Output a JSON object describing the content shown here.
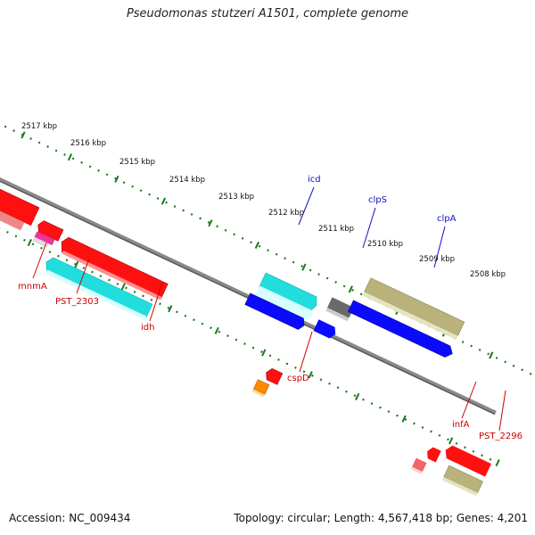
{
  "title": "Pseudomonas stutzeri A1501, complete genome",
  "footer": {
    "accession": "Accession: NC_009434",
    "summary": "Topology: circular; Length: 4,567,418 bp; Genes: 4,201"
  },
  "scale_ticks": [
    "2517 kbp",
    "2516 kbp",
    "2515 kbp",
    "2514 kbp",
    "2513 kbp",
    "2512 kbp",
    "2511 kbp",
    "2510 kbp",
    "2509 kbp",
    "2508 kbp"
  ],
  "genes": {
    "forward": [
      "icd",
      "clpS",
      "clpA"
    ],
    "reverse": [
      "mnmA",
      "PST_2303",
      "idh",
      "cspD",
      "infA",
      "PST_2296"
    ]
  },
  "colors": {
    "forward_label": "#1010c8",
    "reverse_label": "#cc0000",
    "tick_marks": "#1a7a1a",
    "backbone": "#777777"
  }
}
